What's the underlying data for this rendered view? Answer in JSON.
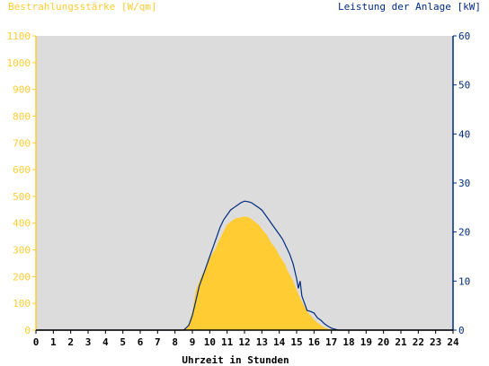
{
  "chart_data": {
    "type": "area",
    "title_left": "Bestrahlungsstärke [W/qm]",
    "title_right": "Leistung der Anlage [kW]",
    "xlabel": "Uhrzeit in Stunden",
    "xlim": [
      0,
      24
    ],
    "x_ticks": [
      "0",
      "1",
      "2",
      "3",
      "4",
      "5",
      "6",
      "7",
      "8",
      "9",
      "10",
      "11",
      "12",
      "13",
      "14",
      "15",
      "16",
      "17",
      "18",
      "19",
      "20",
      "21",
      "22",
      "23",
      "24"
    ],
    "y_left_lim": [
      0,
      1100
    ],
    "y_left_ticks": [
      "0",
      "100",
      "200",
      "300",
      "400",
      "500",
      "600",
      "700",
      "800",
      "900",
      "1000",
      "1100"
    ],
    "y_right_lim": [
      0,
      60
    ],
    "y_right_ticks": [
      "0",
      "10",
      "20",
      "30",
      "40",
      "50",
      "60"
    ],
    "colors": {
      "irradiance": "#ffcc33",
      "power": "#002b80",
      "plot_bg": "#dcdcdc",
      "left_axis_text": "#ffcc33",
      "right_axis_text": "#002b80"
    },
    "series": [
      {
        "name": "Bestrahlungsstärke",
        "axis": "left",
        "style": "filled-area",
        "x": [
          0,
          8.3,
          8.6,
          8.8,
          9.0,
          9.2,
          9.5,
          9.8,
          10.0,
          10.3,
          10.5,
          10.8,
          11.0,
          11.3,
          11.5,
          11.8,
          12.0,
          12.3,
          12.5,
          12.8,
          13.0,
          13.3,
          13.5,
          13.8,
          14.0,
          14.3,
          14.5,
          14.8,
          15.0,
          15.2,
          15.4,
          15.6,
          15.8,
          16.0,
          16.2,
          16.4,
          16.6,
          16.8,
          17.0,
          17.2,
          17.4,
          24
        ],
        "values": [
          0,
          0,
          5,
          25,
          70,
          150,
          200,
          240,
          270,
          300,
          330,
          370,
          395,
          410,
          418,
          422,
          425,
          420,
          410,
          395,
          378,
          355,
          330,
          305,
          280,
          250,
          220,
          185,
          150,
          120,
          95,
          70,
          55,
          40,
          28,
          18,
          10,
          5,
          2,
          0,
          0,
          0
        ]
      },
      {
        "name": "Leistung",
        "axis": "right",
        "style": "line",
        "x": [
          0,
          8.5,
          8.8,
          9.0,
          9.2,
          9.4,
          9.6,
          9.8,
          10.0,
          10.2,
          10.4,
          10.6,
          10.8,
          11.0,
          11.2,
          11.4,
          11.6,
          11.8,
          12.0,
          12.2,
          12.4,
          12.6,
          12.8,
          13.0,
          13.2,
          13.4,
          13.6,
          13.8,
          14.0,
          14.2,
          14.4,
          14.6,
          14.8,
          15.0,
          15.1,
          15.2,
          15.3,
          15.4,
          15.5,
          15.6,
          15.8,
          16.0,
          16.2,
          16.4,
          16.6,
          16.8,
          17.0,
          17.2,
          17.4,
          24
        ],
        "values": [
          0,
          0,
          1,
          3,
          6,
          9,
          11,
          13,
          15,
          17,
          19,
          21,
          22.5,
          23.5,
          24.5,
          25,
          25.5,
          26,
          26.3,
          26.2,
          26,
          25.5,
          25,
          24.5,
          23.5,
          22.5,
          21.5,
          20.5,
          19.5,
          18.5,
          17,
          15.5,
          13.5,
          10.5,
          8.5,
          10,
          7,
          6,
          5,
          4,
          3.8,
          3.5,
          2.5,
          2,
          1.3,
          0.8,
          0.4,
          0.2,
          0,
          0
        ]
      }
    ]
  }
}
